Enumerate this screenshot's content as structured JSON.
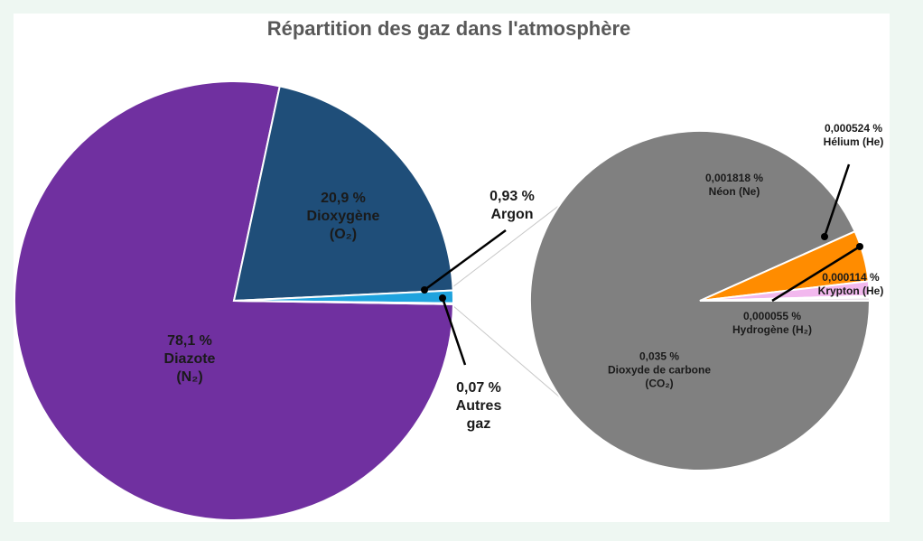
{
  "chart_data": [
    {
      "type": "pie",
      "title": "Répartition des gaz dans l'atmosphère",
      "categories": [
        "Diazote (N₂)",
        "Dioxygène (O₂)",
        "Argon",
        "Autres gaz"
      ],
      "values": [
        78.1,
        20.9,
        0.93,
        0.07
      ],
      "value_labels": [
        "78,1 %",
        "20,9 %",
        "0,93 %",
        "0,07 %"
      ],
      "colors": [
        "#7030a0",
        "#1f4e79",
        "#1fa3de",
        "#ffc000"
      ]
    },
    {
      "type": "pie",
      "categories": [
        "Dioxyde de carbone (CO₂)",
        "Néon (Ne)",
        "Hélium (He)",
        "Hydrogène (H₂)",
        "Krypton (He)"
      ],
      "values": [
        0.035,
        0.001818,
        0.000524,
        5.5e-05,
        0.000114
      ],
      "value_labels": [
        "0,035 %",
        "0,001818 %",
        "0,000524 %",
        "0,000055 %",
        "0,000114 %"
      ],
      "colors": [
        "#808080",
        "#ff8c00",
        "#f2b8ee",
        "#7b2749",
        "#ebe1eb"
      ]
    }
  ]
}
